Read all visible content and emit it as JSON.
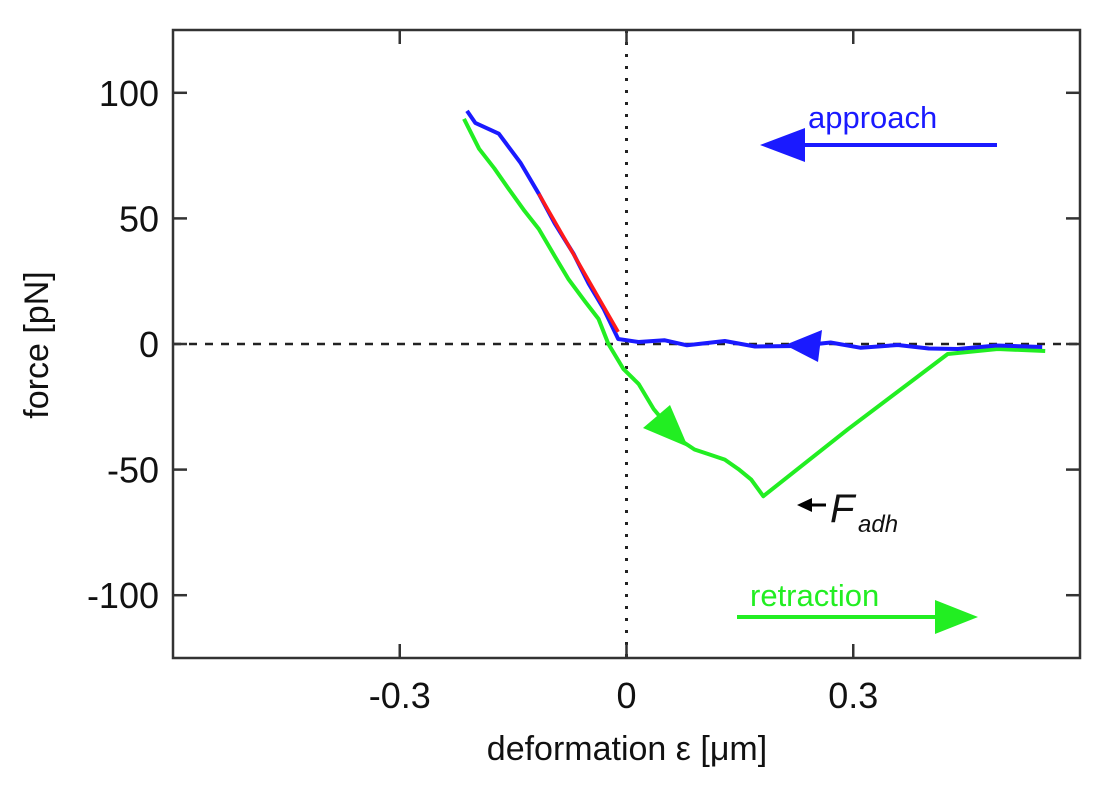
{
  "chart_data": {
    "type": "line",
    "x_label": "deformation ε [μm]",
    "y_label": "force [pN]",
    "xlim": [
      -0.6,
      0.6
    ],
    "ylim": [
      -125,
      125
    ],
    "xticks": [
      -0.3,
      0,
      0.3
    ],
    "yticks": [
      100,
      50,
      0,
      -50,
      -100
    ],
    "series": [
      {
        "name": "approach",
        "color": "#1a1aff",
        "x": [
          -0.211,
          -0.2,
          -0.169,
          -0.14,
          -0.116,
          -0.095,
          -0.07,
          -0.05,
          -0.03,
          -0.011,
          0.016,
          0.05,
          0.08,
          0.095,
          0.13,
          0.17,
          0.227,
          0.27,
          0.31,
          0.359,
          0.4,
          0.438,
          0.49,
          0.55
        ],
        "y": [
          92.8,
          88,
          83.7,
          72,
          59.8,
          48,
          35.9,
          24,
          13.9,
          2,
          0.8,
          1.5,
          -0.5,
          0,
          1.2,
          -1,
          -0.8,
          0.6,
          -1.5,
          -0.4,
          -1.8,
          -2,
          -0.6,
          -1.2
        ]
      },
      {
        "name": "retraction",
        "color": "#22ee22",
        "x": [
          -0.215,
          -0.195,
          -0.175,
          -0.156,
          -0.135,
          -0.116,
          -0.095,
          -0.077,
          -0.055,
          -0.037,
          -0.024,
          -0.004,
          0.016,
          0.036,
          0.069,
          0.09,
          0.108,
          0.13,
          0.148,
          0.165,
          0.181,
          0.293,
          0.425,
          0.491,
          0.554
        ],
        "y": [
          89.6,
          77.7,
          70,
          61.8,
          53,
          45.8,
          35,
          25.9,
          17,
          10,
          0,
          -10,
          -15.9,
          -25.9,
          -37.8,
          -42,
          -43.8,
          -46,
          -49.8,
          -54,
          -60.6,
          -33.9,
          -4,
          -2,
          -2.8
        ]
      }
    ],
    "fit_line": {
      "color": "#ff1a1a",
      "x": [
        -0.116,
        -0.011
      ],
      "y": [
        59.8,
        4.8
      ]
    },
    "adhesion_label": {
      "text": "F",
      "subscript": "adh"
    }
  }
}
